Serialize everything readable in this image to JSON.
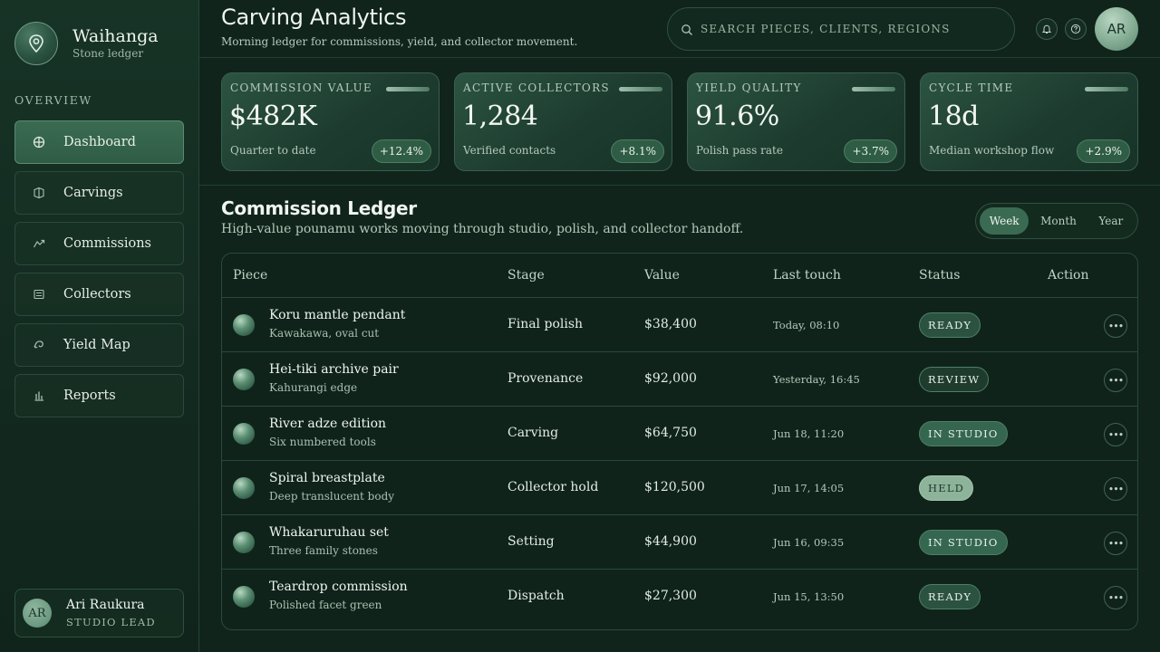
{
  "brand": {
    "name": "Waihanga",
    "subtitle": "Stone ledger"
  },
  "sidebar": {
    "section_label": "OVERVIEW",
    "items": [
      {
        "label": "Dashboard",
        "icon": "dashboard-icon",
        "active": true
      },
      {
        "label": "Carvings",
        "icon": "carvings-icon",
        "active": false
      },
      {
        "label": "Commissions",
        "icon": "commissions-icon",
        "active": false
      },
      {
        "label": "Collectors",
        "icon": "collectors-icon",
        "active": false
      },
      {
        "label": "Yield Map",
        "icon": "yield-map-icon",
        "active": false
      },
      {
        "label": "Reports",
        "icon": "reports-icon",
        "active": false
      }
    ],
    "user": {
      "initials": "AR",
      "name": "Ari Raukura",
      "role": "STUDIO LEAD"
    }
  },
  "header": {
    "title": "Carving Analytics",
    "subtitle": "Morning ledger for commissions, yield, and collector movement.",
    "search_placeholder": "SEARCH PIECES, CLIENTS, REGIONS",
    "avatar_initials": "AR"
  },
  "kpis": [
    {
      "label": "COMMISSION VALUE",
      "value": "$482K",
      "note": "Quarter to date",
      "delta": "+12.4%"
    },
    {
      "label": "ACTIVE COLLECTORS",
      "value": "1,284",
      "note": "Verified contacts",
      "delta": "+8.1%"
    },
    {
      "label": "YIELD QUALITY",
      "value": "91.6%",
      "note": "Polish pass rate",
      "delta": "+3.7%"
    },
    {
      "label": "CYCLE TIME",
      "value": "18d",
      "note": "Median workshop flow",
      "delta": "+2.9%"
    }
  ],
  "ledger": {
    "title": "Commission Ledger",
    "subtitle": "High-value pounamu works moving through studio, polish, and collector handoff.",
    "periods": [
      {
        "label": "Week",
        "active": true
      },
      {
        "label": "Month",
        "active": false
      },
      {
        "label": "Year",
        "active": false
      }
    ],
    "columns": [
      "Piece",
      "Stage",
      "Value",
      "Last touch",
      "Status",
      "Action"
    ],
    "rows": [
      {
        "name": "Koru mantle pendant",
        "detail": "Kawakawa, oval cut",
        "stage": "Final polish",
        "value": "$38,400",
        "last_touch": "Today, 08:10",
        "status": "READY",
        "status_kind": "ready"
      },
      {
        "name": "Hei-tiki archive pair",
        "detail": "Kahurangi edge",
        "stage": "Provenance",
        "value": "$92,000",
        "last_touch": "Yesterday, 16:45",
        "status": "REVIEW",
        "status_kind": "review"
      },
      {
        "name": "River adze edition",
        "detail": "Six numbered tools",
        "stage": "Carving",
        "value": "$64,750",
        "last_touch": "Jun 18, 11:20",
        "status": "IN STUDIO",
        "status_kind": "studio"
      },
      {
        "name": "Spiral breastplate",
        "detail": "Deep translucent body",
        "stage": "Collector hold",
        "value": "$120,500",
        "last_touch": "Jun 17, 14:05",
        "status": "HELD",
        "status_kind": "held"
      },
      {
        "name": "Whakaruruhau set",
        "detail": "Three family stones",
        "stage": "Setting",
        "value": "$44,900",
        "last_touch": "Jun 16, 09:35",
        "status": "IN STUDIO",
        "status_kind": "studio"
      },
      {
        "name": "Teardrop commission",
        "detail": "Polished facet green",
        "stage": "Dispatch",
        "value": "$27,300",
        "last_touch": "Jun 15, 13:50",
        "status": "READY",
        "status_kind": "ready"
      }
    ]
  },
  "colors": {
    "accent": "#3a6b52",
    "background": "#10241b",
    "held_badge": "#8db39b"
  }
}
